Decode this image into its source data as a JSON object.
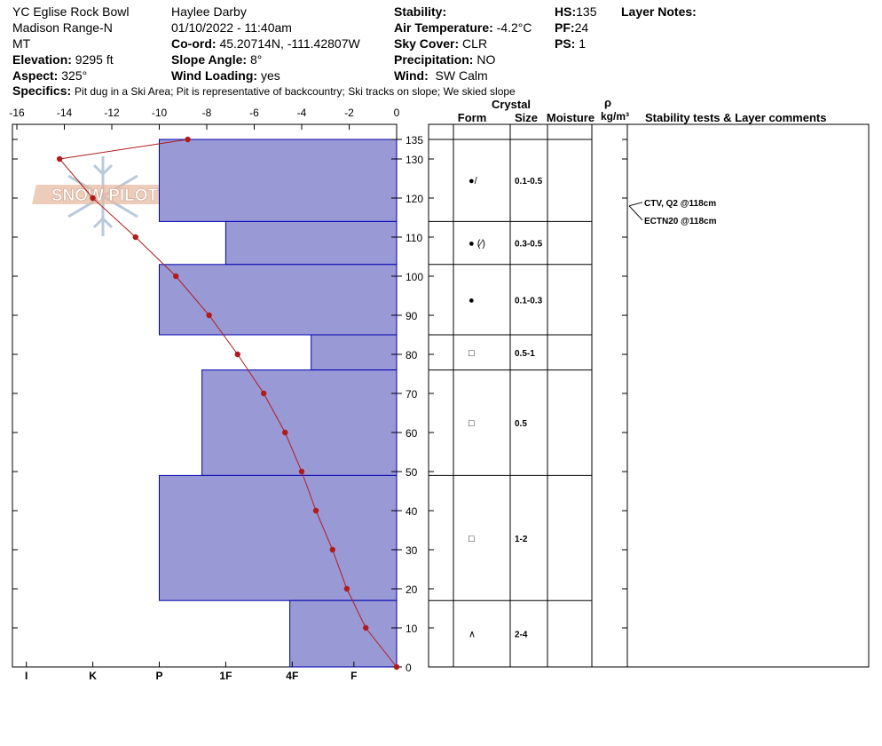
{
  "header": {
    "location": "YC Eglise Rock Bowl",
    "range": "Madison Range-N",
    "state": "MT",
    "elevation_label": "Elevation:",
    "elevation": "9295 ft",
    "aspect_label": "Aspect:",
    "aspect": "325°",
    "observer": "Haylee Darby",
    "datetime": "01/10/2022 - 11:40am",
    "coord_label": "Co-ord:",
    "coord": "45.20714N, -111.42807W",
    "slope_label": "Slope Angle:",
    "slope": "8°",
    "wind_loading_label": "Wind Loading:",
    "wind_loading": "yes",
    "stability_label": "Stability:",
    "stability": "",
    "air_temp_label": "Air Temperature:",
    "air_temp": "-4.2°C",
    "sky_label": "Sky Cover:",
    "sky": "CLR",
    "precip_label": "Precipitation:",
    "precip": "NO",
    "wind_label": "Wind:",
    "wind": "SW Calm",
    "hs_label": "HS:",
    "hs": "135",
    "pf_label": "PF:",
    "pf": "24",
    "ps_label": "PS:",
    "ps": "1",
    "layer_notes_label": "Layer Notes:",
    "specifics_label": "Specifics:",
    "specifics": "Pit dug in a Ski Area;  Pit is representative of backcountry;  Ski tracks on slope;  We skied slope"
  },
  "logo_text": "SNOW PILOT",
  "table": {
    "crystal_label": "Crystal",
    "rho_label": "ρ",
    "col_form": "Form",
    "col_size": "Size",
    "col_moisture": "Moisture",
    "col_density": "kg/m³",
    "col_tests": "Stability tests & Layer comments"
  },
  "tests": [
    {
      "label": "CTV, Q2 @118cm",
      "depth": 118
    },
    {
      "label": "ECTN20 @118cm",
      "depth": 118
    }
  ],
  "colors": {
    "layer_fill": "#9999d6",
    "layer_stroke": "#0000b0",
    "temp_line": "#b01c1c"
  },
  "chart_data": {
    "type": "snow-profile",
    "temp_axis": {
      "ticks": [
        -16,
        -14,
        -12,
        -10,
        -8,
        -6,
        -4,
        -2,
        0
      ],
      "range": [
        -16,
        0
      ]
    },
    "depth_axis": {
      "ticks": [
        0,
        10,
        20,
        30,
        40,
        50,
        60,
        70,
        80,
        90,
        100,
        110,
        120,
        130,
        135
      ],
      "range": [
        0,
        135
      ]
    },
    "hardness_axis": {
      "labels": [
        "I",
        "K",
        "P",
        "1F",
        "4F",
        "F"
      ],
      "values": [
        -15.6,
        -12.8,
        -10,
        -7.2,
        -4.4,
        -1.8
      ]
    },
    "temperature_profile": [
      {
        "depth": 135,
        "temp": -8.8
      },
      {
        "depth": 130,
        "temp": -14.2
      },
      {
        "depth": 120,
        "temp": -12.8
      },
      {
        "depth": 110,
        "temp": -11.0
      },
      {
        "depth": 100,
        "temp": -9.3
      },
      {
        "depth": 90,
        "temp": -7.9
      },
      {
        "depth": 80,
        "temp": -6.7
      },
      {
        "depth": 70,
        "temp": -5.6
      },
      {
        "depth": 60,
        "temp": -4.7
      },
      {
        "depth": 50,
        "temp": -4.0
      },
      {
        "depth": 40,
        "temp": -3.4
      },
      {
        "depth": 30,
        "temp": -2.7
      },
      {
        "depth": 20,
        "temp": -2.1
      },
      {
        "depth": 10,
        "temp": -1.3
      },
      {
        "depth": 0,
        "temp": 0.0
      }
    ],
    "layers": [
      {
        "top": 135,
        "bottom": 114,
        "hardness": -10.0,
        "form": "●/",
        "form_icon": "decomposing-fragments-icon",
        "size": "0.1-0.5"
      },
      {
        "top": 114,
        "bottom": 103,
        "hardness": -7.2,
        "form": "● (⁄)",
        "form_icon": "rounded-grains-icon",
        "size": "0.3-0.5"
      },
      {
        "top": 103,
        "bottom": 85,
        "hardness": -10.0,
        "form": "●",
        "form_icon": "rounded-grains-icon",
        "size": "0.1-0.3"
      },
      {
        "top": 85,
        "bottom": 76,
        "hardness": -3.6,
        "form": "□",
        "form_icon": "faceted-crystals-icon",
        "size": "0.5-1"
      },
      {
        "top": 76,
        "bottom": 49,
        "hardness": -8.2,
        "form": "□",
        "form_icon": "faceted-crystals-icon",
        "size": "0.5"
      },
      {
        "top": 49,
        "bottom": 17,
        "hardness": -10.0,
        "form": "□",
        "form_icon": "faceted-crystals-icon",
        "size": "1-2"
      },
      {
        "top": 17,
        "bottom": 0,
        "hardness": -4.5,
        "form": "∧",
        "form_icon": "depth-hoar-icon",
        "size": "2-4"
      }
    ]
  }
}
